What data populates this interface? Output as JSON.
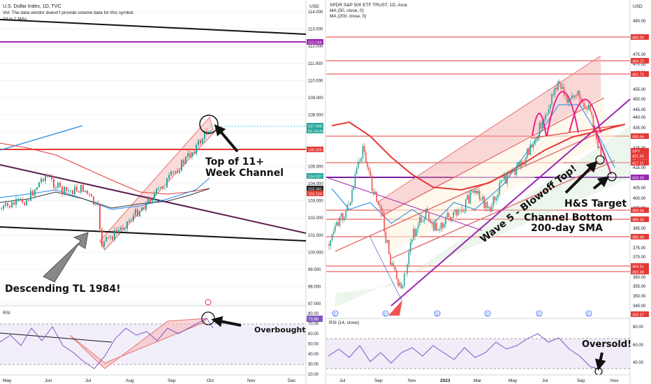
{
  "left_panel": {
    "header": {
      "title": "U.S. Dollar Index, 1D, TVC",
      "vol_note": "Vol: The data vendor doesn't provide volume data for this symbol.",
      "ma_note": "10 in 1 MAs"
    },
    "currency": "USD",
    "price_ticks": [
      "114.000",
      "113.000",
      "112.000",
      "111.000",
      "110.000",
      "109.000",
      "108.000",
      "107.000",
      "106.000",
      "105.000",
      "104.000",
      "103.000",
      "102.000",
      "101.000",
      "100.000",
      "99.000",
      "98.000",
      "97.000"
    ],
    "price_tags": [
      {
        "text": "112.164",
        "color": "#9c27b0"
      },
      {
        "text": "107.068",
        "color": "#26a69a"
      },
      {
        "text": "55:14:49",
        "color": "#26a69a"
      },
      {
        "text": "105.625",
        "color": "#e53935"
      },
      {
        "text": "104.037",
        "color": "#26a69a"
      },
      {
        "text": "103.341",
        "color": "#222222"
      },
      {
        "text": "103.124",
        "color": "#e53935"
      }
    ],
    "x_ticks": [
      "May",
      "Jun",
      "Jul",
      "Aug",
      "Sep",
      "Oct",
      "Nov",
      "Dec"
    ],
    "rsi": {
      "label": "RSI",
      "ticks": [
        "80.00",
        "70.00",
        "60.00",
        "50.00",
        "40.00",
        "30.00",
        "20.00"
      ],
      "tag": "73.86"
    },
    "annotations": {
      "top_channel_line1": "Top of 11+",
      "top_channel_line2": "Week Channel",
      "descending_tl": "Descending TL 1984!",
      "overbought": "Overbought"
    }
  },
  "right_panel": {
    "header": {
      "title": "SPDR S&P 500 ETF TRUST, 1D, Arca",
      "ma50": "MA (50, close, 0)",
      "ma200": "MA (200, close, 0)"
    },
    "currency": "USD",
    "price_ticks": [
      "490.00",
      "485.00",
      "475.00",
      "470.00",
      "465.00",
      "455.00",
      "450.00",
      "445.00",
      "440.00",
      "435.00",
      "425.00",
      "420.00",
      "415.00",
      "405.00",
      "400.00",
      "395.00",
      "390.00",
      "385.00",
      "375.00",
      "370.00",
      "360.00",
      "355.00",
      "350.00",
      "345.00",
      "340.00"
    ],
    "price_tags": [
      {
        "text": "480.00",
        "color": "#e53935"
      },
      {
        "text": "469.22",
        "color": "#e53935"
      },
      {
        "text": "461.73",
        "color": "#e53935"
      },
      {
        "text": "430.64",
        "color": "#e53935"
      },
      {
        "text": "SPY",
        "color": "#e53935"
      },
      {
        "text": "421.53",
        "color": "#e53935"
      },
      {
        "text": "02:14:39",
        "color": "#e53935"
      },
      {
        "text": "417.11",
        "color": "#e53935"
      },
      {
        "text": "410.15",
        "color": "#9c27b0"
      },
      {
        "text": "393.54",
        "color": "#e53935"
      },
      {
        "text": "388.32",
        "color": "#e53935"
      },
      {
        "text": "380.48",
        "color": "#e53935"
      },
      {
        "text": "365.51",
        "color": "#e53935"
      },
      {
        "text": "362.48",
        "color": "#e53935"
      },
      {
        "text": "333.17",
        "color": "#e53935"
      }
    ],
    "x_ticks": [
      "Jul",
      "Sep",
      "Nov",
      "2023",
      "Mar",
      "May",
      "Jul",
      "Sep",
      "Nov"
    ],
    "dividend_marker": "D",
    "rsi": {
      "label": "RSI (14, close)",
      "ticks": [
        "80.00",
        "60.00",
        "40.00"
      ]
    },
    "annotations": {
      "wave5": "Wave 5 - Blowoff Top!",
      "hs_target": "H&S Target",
      "channel_bottom_line1": "Channel Bottom",
      "channel_bottom_line2": "200-day SMA",
      "oversold": "Oversold!"
    }
  },
  "chart_data": [
    {
      "type": "candlestick",
      "title": "U.S. Dollar Index, 1D, TVC",
      "ylim": [
        96.5,
        114.5
      ],
      "x": [
        "May",
        "Jun",
        "Jul",
        "Aug",
        "Sep",
        "Oct"
      ],
      "approx_monthly_close": [
        103.0,
        104.7,
        105.5,
        108.8,
        111.5,
        107.1
      ],
      "last_price": 107.068,
      "levels": [
        105.625,
        112.164,
        103.124
      ]
    },
    {
      "type": "candlestick",
      "title": "SPDR S&P 500 ETF TRUST, 1D, Arca",
      "ylim": [
        335,
        495
      ],
      "x": [
        "Jul",
        "Sep",
        "Nov",
        "2023",
        "Mar",
        "May",
        "Jul",
        "Sep"
      ],
      "approx_close": [
        385,
        395,
        400,
        385,
        395,
        415,
        455,
        425
      ],
      "last_price": 421.53,
      "levels": [
        480.0,
        469.22,
        461.73,
        430.64,
        417.11,
        410.15,
        393.54,
        388.32,
        380.48,
        365.51,
        362.48,
        333.17
      ]
    }
  ]
}
